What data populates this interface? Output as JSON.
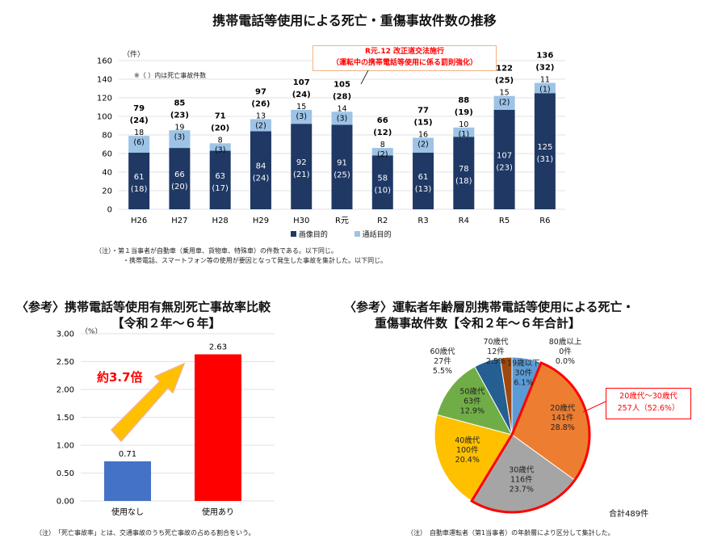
{
  "main_title": "携帯電話等使用による死亡・重傷事故件数の推移",
  "top": {
    "y_unit": "（件）",
    "y_ticks": [
      "0",
      "20",
      "40",
      "60",
      "80",
      "100",
      "120",
      "140",
      "160"
    ],
    "inner_note": "※（ ）内は死亡事故件数",
    "callout_line1": "R元.12 改正道交法施行",
    "callout_line2": "（運転中の携帯電話等使用に係る罰則強化）",
    "legend_image": "画像目的",
    "legend_call": "通話目的",
    "note_line1": "（注）・第１当事者が自動車（乗用車、貨物車、特殊車）の件数である。以下同じ。",
    "note_line2": "・携帯電話、スマートフォン等の使用が要因となって発生した事故を集計した。以下同じ。"
  },
  "left": {
    "title_line1": "〈参考〉携帯電話等使用有無別死亡事故率比較",
    "title_line2": "【令和２年～６年】",
    "y_unit": "（%）",
    "y_ticks": [
      "0.00",
      "0.50",
      "1.00",
      "1.50",
      "2.00",
      "2.50",
      "3.00"
    ],
    "ratio_label": "約3.7倍",
    "note": "（注）　「死亡事故率」とは、交通事故のうち死亡事故の占める割合をいう。"
  },
  "right": {
    "title_line1": "〈参考〉運転者年齢層別携帯電話等使用による死亡・",
    "title_line2": "重傷事故件数【令和２年～６年合計】",
    "highlight_line1": "20歳代～30歳代",
    "highlight_line2": "257人（52.6%）",
    "total": "合計489件",
    "note": "（注）　自動車運転者（第1当事者）の年齢層により区分して集計した。"
  },
  "colors": {
    "image": "#1f3864",
    "call": "#9dc3e6",
    "bar_without": "#4472c4",
    "bar_with": "#ff0000",
    "arrow": "#ffc000",
    "ratio_text": "#ff0000",
    "highlight": "#ff0000"
  },
  "chart_data": [
    {
      "type": "bar",
      "stacked": true,
      "categories": [
        "H26",
        "H27",
        "H28",
        "H29",
        "H30",
        "R元",
        "R2",
        "R3",
        "R4",
        "R5",
        "R6"
      ],
      "ylim": [
        0,
        160
      ],
      "totals": [
        "79",
        "85",
        "71",
        "97",
        "107",
        "105",
        "66",
        "77",
        "88",
        "122",
        "136"
      ],
      "total_fatal": [
        "(24)",
        "(23)",
        "(20)",
        "(26)",
        "(24)",
        "(28)",
        "(12)",
        "(15)",
        "(19)",
        "(25)",
        "(32)"
      ],
      "series": [
        {
          "name": "画像目的",
          "values": [
            61,
            66,
            63,
            84,
            92,
            91,
            58,
            61,
            78,
            107,
            125
          ],
          "fatal": [
            "(18)",
            "(20)",
            "(17)",
            "(24)",
            "(21)",
            "(25)",
            "(10)",
            "(13)",
            "(18)",
            "(23)",
            "(31)"
          ]
        },
        {
          "name": "通話目的",
          "values": [
            18,
            19,
            8,
            13,
            15,
            14,
            8,
            16,
            10,
            15,
            11
          ],
          "fatal": [
            "(6)",
            "(3)",
            "(3)",
            "(2)",
            "(3)",
            "(3)",
            "(2)",
            "(2)",
            "(1)",
            "(2)",
            "(1)"
          ]
        }
      ]
    },
    {
      "type": "bar",
      "categories": [
        "使用なし",
        "使用あり"
      ],
      "values": [
        0.71,
        2.63
      ],
      "value_labels": [
        "0.71",
        "2.63"
      ],
      "ylim": [
        0,
        3.0
      ]
    },
    {
      "type": "pie",
      "slices": [
        {
          "label": "19歳以下",
          "count": "30件",
          "pct": "6.1%",
          "value": 30,
          "color": "#5b9bd5"
        },
        {
          "label": "20歳代",
          "count": "141件",
          "pct": "28.8%",
          "value": 141,
          "color": "#ed7d31"
        },
        {
          "label": "30歳代",
          "count": "116件",
          "pct": "23.7%",
          "value": 116,
          "color": "#a5a5a5"
        },
        {
          "label": "40歳代",
          "count": "100件",
          "pct": "20.4%",
          "value": 100,
          "color": "#ffc000"
        },
        {
          "label": "50歳代",
          "count": "63件",
          "pct": "12.9%",
          "value": 63,
          "color": "#70ad47"
        },
        {
          "label": "60歳代",
          "count": "27件",
          "pct": "5.5%",
          "value": 27,
          "color": "#255e91"
        },
        {
          "label": "70歳代",
          "count": "12件",
          "pct": "2.5%",
          "value": 12,
          "color": "#9e480e"
        },
        {
          "label": "80歳以上",
          "count": "0件",
          "pct": "0.0%",
          "value": 0,
          "color": "#636363"
        }
      ]
    }
  ]
}
